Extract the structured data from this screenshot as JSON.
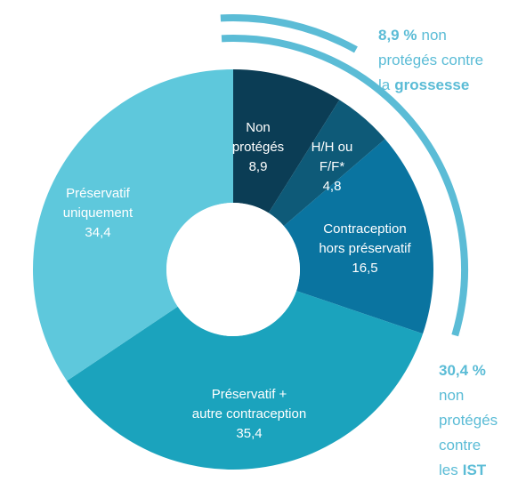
{
  "chart_data": {
    "type": "donut",
    "categories": [
      "Non protégés",
      "H/H ou F/F*",
      "Contraception hors préservatif",
      "Préservatif + autre contraception",
      "Préservatif uniquement"
    ],
    "values": [
      8.9,
      4.8,
      16.5,
      35.4,
      34.4
    ],
    "value_labels": [
      "8,9",
      "4,8",
      "16,5",
      "35,4",
      "34,4"
    ],
    "colors": [
      "#0b3d55",
      "#0e5a78",
      "#0a74a0",
      "#1ba3bd",
      "#5ec8dc"
    ],
    "annotations": [
      {
        "value": 8.9,
        "value_label": "8,9 %",
        "color": "#5bbcd6",
        "lines": [
          [
            {
              "text": "non",
              "bold": false
            }
          ],
          [
            {
              "text": "protégés contre",
              "bold": false
            }
          ],
          [
            {
              "text": "la",
              "bold": false
            },
            {
              "text": "grossesse",
              "bold": true
            }
          ]
        ]
      },
      {
        "value": 30.4,
        "value_label": "30,4 %",
        "color": "#5bbcd6",
        "lines": [
          [
            {
              "text": "non",
              "bold": false
            }
          ],
          [
            {
              "text": "protégés",
              "bold": false
            }
          ],
          [
            {
              "text": "contre",
              "bold": false
            }
          ],
          [
            {
              "text": "les",
              "bold": false
            },
            {
              "text": "IST",
              "bold": true
            }
          ]
        ]
      }
    ]
  }
}
